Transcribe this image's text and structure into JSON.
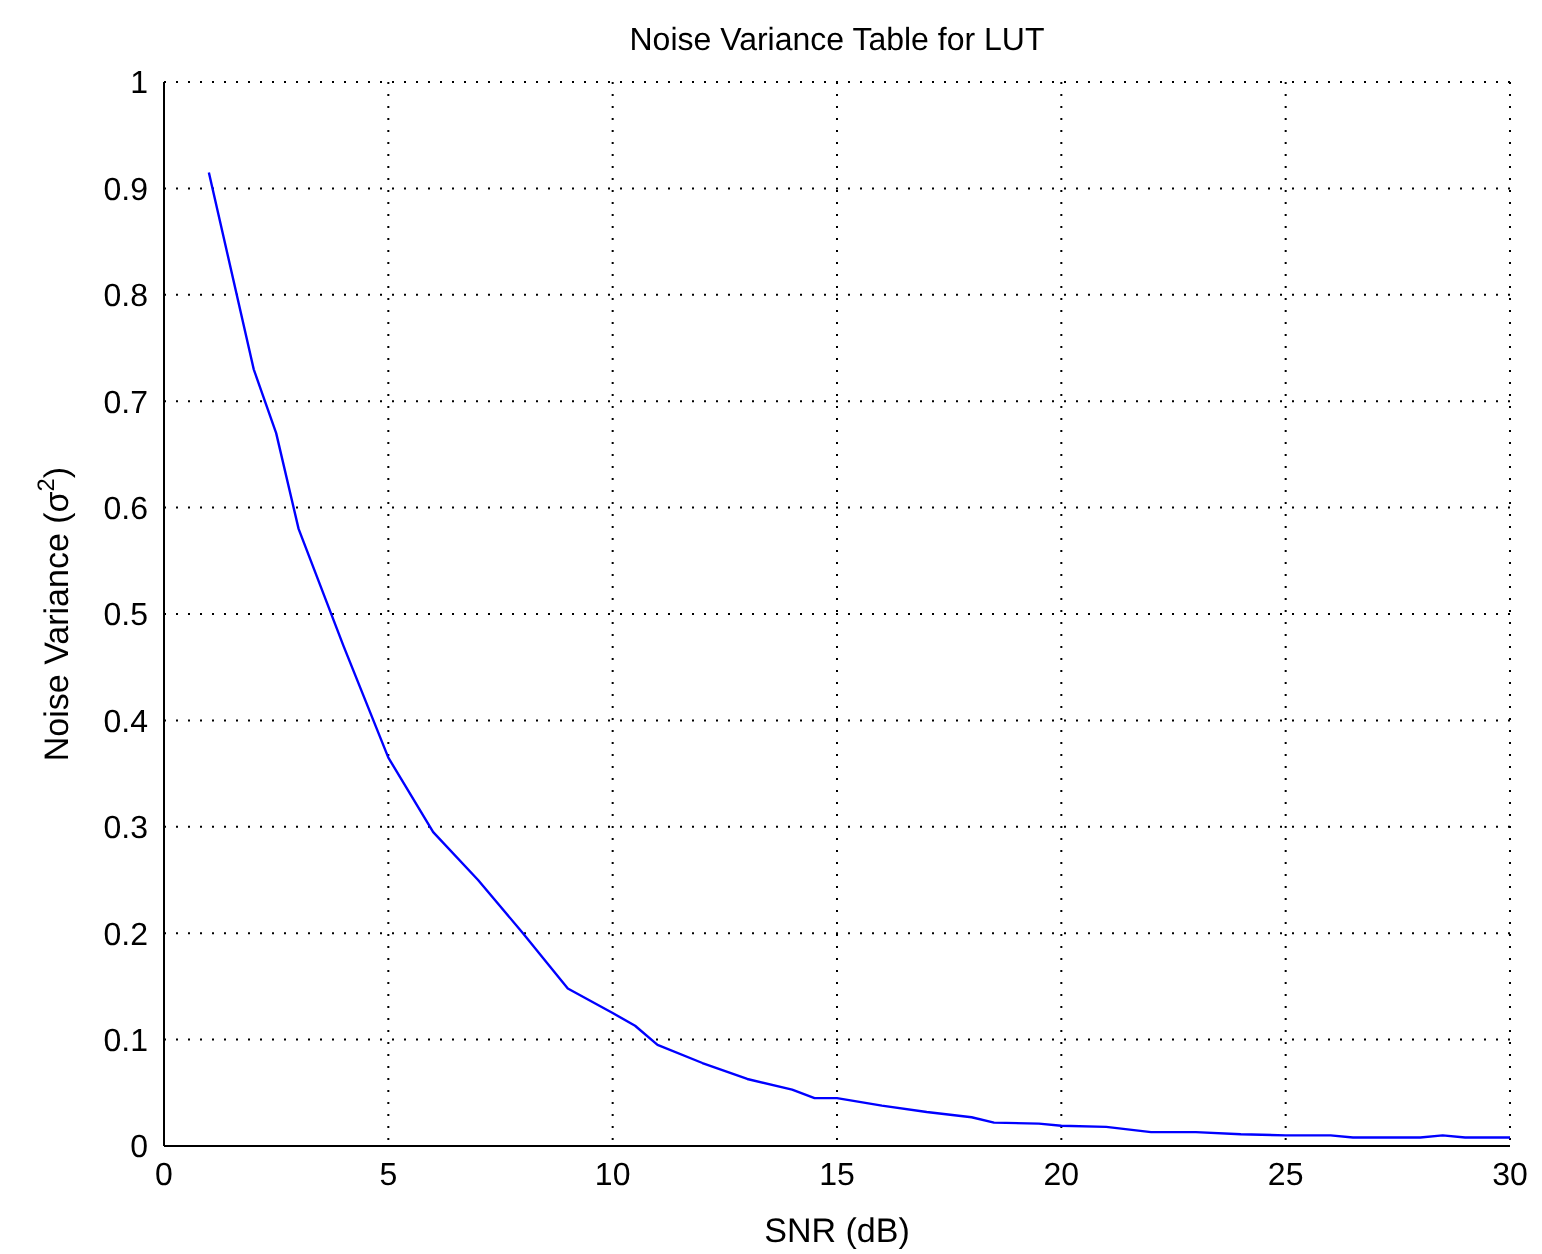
{
  "chart_data": {
    "type": "line",
    "title": "Noise Variance Table for LUT",
    "xlabel": "SNR (dB)",
    "ylabel": "Noise Variance (σ$^{2}$)",
    "x": [
      1,
      2,
      2.5,
      3,
      4,
      5,
      6,
      7,
      8,
      9,
      10,
      10.5,
      11,
      12,
      13,
      14,
      14.5,
      15,
      16,
      17,
      18,
      18.5,
      19.5,
      20,
      21,
      22,
      23,
      24,
      25,
      26,
      26.5,
      28,
      28.5,
      29,
      30
    ],
    "series": [
      {
        "color": "#0000ff",
        "values": [
          0.915,
          0.73,
          0.67,
          0.58,
          0.47,
          0.365,
          0.295,
          0.25,
          0.2,
          0.148,
          0.125,
          0.113,
          0.095,
          0.078,
          0.063,
          0.053,
          0.045,
          0.045,
          0.038,
          0.032,
          0.027,
          0.022,
          0.021,
          0.019,
          0.018,
          0.013,
          0.013,
          0.011,
          0.01,
          0.01,
          0.008,
          0.008,
          0.01,
          0.008,
          0.008
        ]
      }
    ],
    "xlim": [
      0,
      30
    ],
    "xticks": [
      0,
      5,
      10,
      15,
      20,
      25,
      30
    ],
    "ylim": [
      0,
      1
    ],
    "yticks": [
      0,
      0.1,
      0.2,
      0.3,
      0.4,
      0.5,
      0.6,
      0.7,
      0.8,
      0.9,
      1
    ],
    "grid": true
  }
}
